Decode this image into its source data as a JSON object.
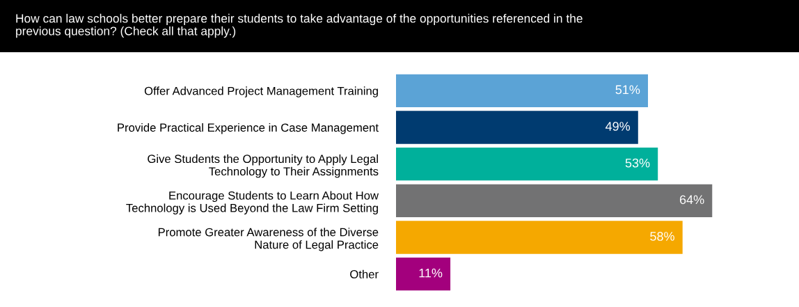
{
  "chart_data": {
    "type": "bar",
    "orientation": "horizontal",
    "title": "How can law schools better prepare their students to take advantage of the opportunities referenced in the\nprevious question? (Check all that apply.)",
    "categories": [
      "Offer Advanced Project Management Training",
      "Provide Practical Experience in Case Management",
      "Give Students the Opportunity to Apply Legal\nTechnology to Their Assignments",
      "Encourage Students to Learn About How\nTechnology is Used Beyond the Law Firm Setting",
      "Promote Greater Awareness of the Diverse\nNature of Legal Practice",
      "Other"
    ],
    "values": [
      51,
      49,
      53,
      64,
      58,
      11
    ],
    "colors": [
      "#5ba3d6",
      "#003b70",
      "#00b09b",
      "#727273",
      "#f5a800",
      "#a3007d"
    ],
    "value_labels": [
      "51%",
      "49%",
      "53%",
      "64%",
      "58%",
      "11%"
    ],
    "tick_labels": "y",
    "grid": false,
    "legend": false
  }
}
